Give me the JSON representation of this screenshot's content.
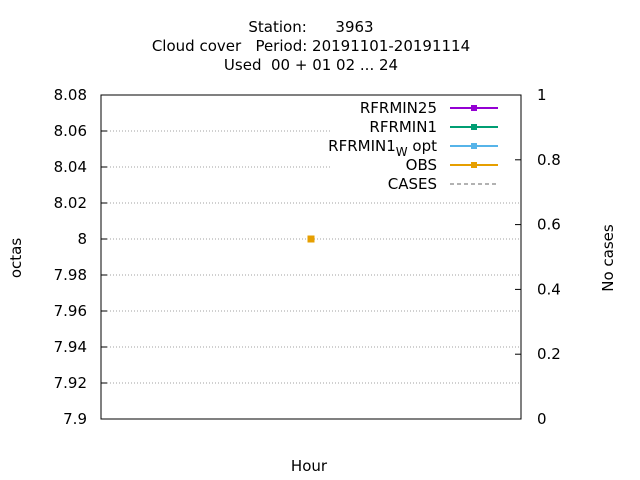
{
  "chart_data": {
    "type": "line",
    "title_lines": [
      "Station:      3963",
      "Cloud cover   Period: 20191101-20191114",
      "Used  00 + 01 02 ... 24"
    ],
    "xlabel": "Hour",
    "ylabel": "octas",
    "y2label": "No cases",
    "ylim": [
      7.9,
      8.08
    ],
    "y_ticks": [
      "7.9",
      "7.92",
      "7.94",
      "7.96",
      "7.98",
      "8",
      "8.02",
      "8.04",
      "8.06",
      "8.08"
    ],
    "y2lim": [
      0,
      1
    ],
    "y2_ticks": [
      "0",
      "0.2",
      "0.4",
      "0.6",
      "0.8",
      "1"
    ],
    "xlim": [
      -1,
      1
    ],
    "grid": true,
    "legend_position": "top-right",
    "series": [
      {
        "name": "RFRMIN25",
        "color": "#9400d3",
        "dash": false,
        "marker": true,
        "x": [],
        "y": []
      },
      {
        "name": "RFRMIN1",
        "color": "#009e73",
        "dash": false,
        "marker": true,
        "x": [],
        "y": []
      },
      {
        "name": "RFRMIN1",
        "subscript": "W",
        "suffix": "opt",
        "color": "#56b4e9",
        "dash": false,
        "marker": true,
        "x": [],
        "y": []
      },
      {
        "name": "OBS",
        "color": "#e69f00",
        "dash": false,
        "marker": true,
        "x": [
          0
        ],
        "y": [
          8
        ]
      },
      {
        "name": "CASES",
        "color": "#999999",
        "dash": true,
        "marker": false,
        "x": [],
        "y": []
      }
    ]
  }
}
